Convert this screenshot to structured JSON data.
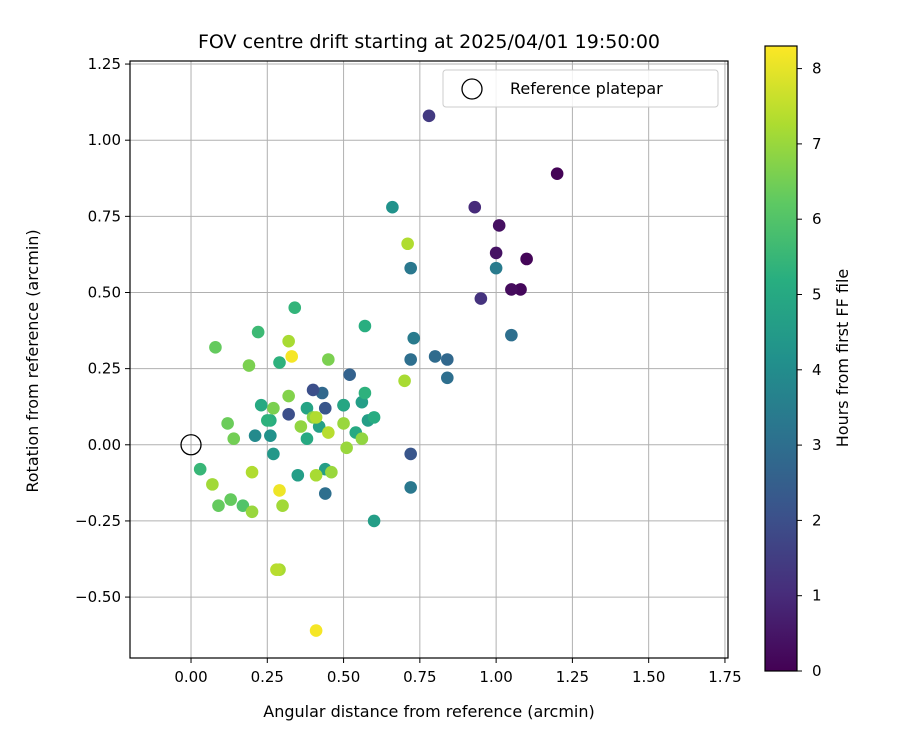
{
  "chart_data": {
    "type": "scatter",
    "title": "FOV centre drift starting at 2025/04/01 19:50:00",
    "xlabel": "Angular distance from reference (arcmin)",
    "ylabel": "Rotation from reference (arcmin)",
    "xlim": [
      -0.2,
      1.76
    ],
    "ylim": [
      -0.7,
      1.26
    ],
    "x_ticks": [
      0.0,
      0.25,
      0.5,
      0.75,
      1.0,
      1.25,
      1.5,
      1.75
    ],
    "x_tick_labels": [
      "0.00",
      "0.25",
      "0.50",
      "0.75",
      "1.00",
      "1.25",
      "1.50",
      "1.75"
    ],
    "y_ticks": [
      -0.5,
      -0.25,
      0.0,
      0.25,
      0.5,
      0.75,
      1.0,
      1.25
    ],
    "y_tick_labels": [
      "−0.50",
      "−0.25",
      "0.00",
      "0.25",
      "0.50",
      "0.75",
      "1.00",
      "1.25"
    ],
    "grid": true,
    "legend": {
      "placement": "top-right",
      "entries": [
        "Reference platepar"
      ]
    },
    "reference_point": {
      "x": 0.0,
      "y": 0.0
    },
    "colorbar": {
      "label": "Hours from first FF file",
      "range": [
        0,
        8.3
      ],
      "ticks": [
        0,
        1,
        2,
        3,
        4,
        5,
        6,
        7,
        8
      ],
      "tick_labels": [
        "0",
        "1",
        "2",
        "3",
        "4",
        "5",
        "6",
        "7",
        "8"
      ],
      "colormap": "viridis"
    },
    "series": [
      {
        "x": [
          1.2,
          1.1,
          1.08,
          1.05,
          1.01,
          1.0,
          0.93,
          0.95,
          0.78,
          0.84,
          0.8,
          0.84,
          0.72,
          0.72,
          0.5,
          0.52,
          0.43,
          0.4,
          0.44,
          0.32,
          0.44,
          1.05,
          1.0,
          0.72,
          0.73,
          0.72,
          0.27,
          0.21,
          0.26,
          0.66,
          0.58,
          0.56,
          0.5,
          0.54,
          0.6,
          0.42,
          0.38,
          0.38,
          0.35,
          0.44,
          0.26,
          0.6,
          0.23,
          0.25,
          0.57,
          0.57,
          0.03,
          0.34,
          0.29,
          0.22,
          0.45,
          0.17,
          0.13,
          0.08,
          0.09,
          0.12,
          0.19,
          0.07,
          0.14,
          0.27,
          0.36,
          0.4,
          0.5,
          0.51,
          0.56,
          0.41,
          0.46,
          0.41,
          0.32,
          0.45,
          0.2,
          0.2,
          0.32,
          0.29,
          0.3,
          0.7,
          0.71,
          0.28,
          0.33,
          0.29,
          0.41
        ],
        "y": [
          0.89,
          0.61,
          0.51,
          0.51,
          0.72,
          0.63,
          0.78,
          0.48,
          1.08,
          0.22,
          0.29,
          0.28,
          0.58,
          -0.03,
          0.13,
          0.23,
          0.17,
          0.18,
          0.12,
          0.1,
          -0.16,
          0.36,
          0.58,
          -0.14,
          0.35,
          0.28,
          -0.03,
          0.03,
          0.03,
          0.78,
          0.08,
          0.14,
          0.13,
          0.04,
          -0.25,
          0.06,
          0.12,
          0.02,
          -0.1,
          -0.08,
          0.08,
          0.09,
          0.13,
          0.08,
          0.17,
          0.39,
          -0.08,
          0.45,
          0.27,
          0.37,
          0.28,
          -0.2,
          -0.18,
          0.32,
          -0.2,
          0.07,
          0.26,
          -0.13,
          0.02,
          0.12,
          0.06,
          0.09,
          0.07,
          -0.01,
          0.02,
          -0.1,
          -0.09,
          0.09,
          0.34,
          0.04,
          -0.09,
          -0.22,
          0.16,
          -0.41,
          -0.2,
          0.21,
          0.66,
          -0.41,
          0.29,
          -0.15,
          -0.61
        ],
        "hours": [
          0.05,
          0.1,
          0.15,
          0.25,
          0.35,
          0.4,
          1.0,
          1.2,
          1.4,
          3.0,
          2.9,
          2.8,
          3.3,
          2.2,
          2.3,
          2.6,
          2.8,
          2.0,
          2.2,
          2.0,
          3.0,
          3.0,
          3.4,
          3.3,
          3.4,
          3.0,
          4.4,
          3.9,
          4.2,
          4.2,
          4.6,
          4.6,
          4.9,
          5.0,
          4.6,
          4.7,
          4.8,
          5.0,
          4.6,
          4.6,
          5.2,
          5.1,
          5.0,
          5.3,
          5.3,
          5.2,
          5.5,
          5.4,
          5.3,
          5.6,
          6.6,
          6.0,
          6.3,
          6.3,
          6.3,
          6.4,
          6.6,
          7.1,
          6.5,
          6.6,
          6.9,
          6.8,
          7.0,
          7.0,
          6.9,
          7.2,
          7.0,
          7.3,
          7.2,
          7.4,
          7.3,
          7.0,
          6.7,
          7.2,
          7.1,
          7.2,
          7.3,
          7.4,
          8.2,
          8.1,
          8.2
        ]
      }
    ]
  }
}
